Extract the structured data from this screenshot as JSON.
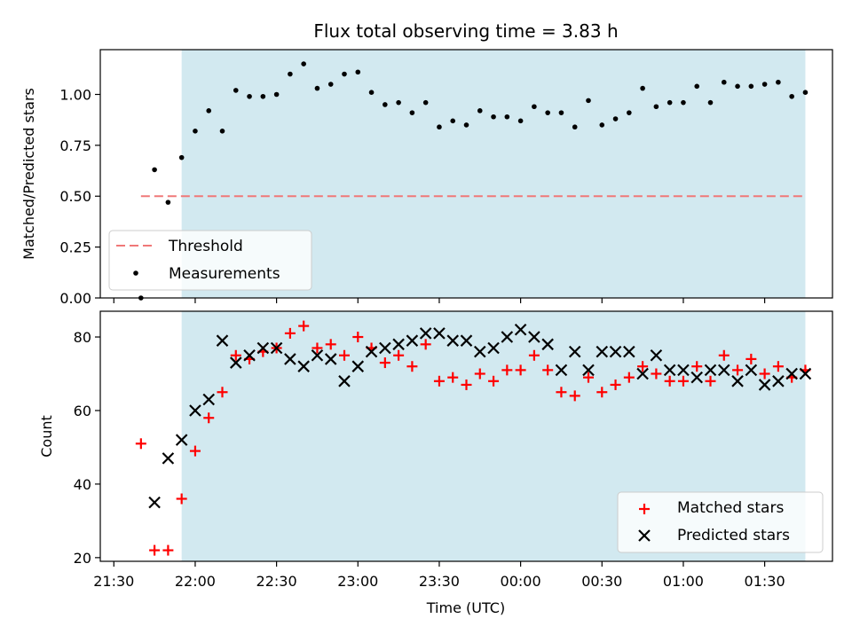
{
  "chart_data": [
    {
      "type": "scatter",
      "title": "Flux total observing time = 3.83 h",
      "ylabel": "Matched/Predicted stars",
      "xlabel": "",
      "ylim": [
        0,
        1.22
      ],
      "yticks": [
        "0.00",
        "0.25",
        "0.50",
        "0.75",
        "1.00"
      ],
      "highlight_span": {
        "start": "21:55",
        "end": "01:45",
        "color": "#d2e9f0"
      },
      "threshold": {
        "name": "Threshold",
        "value": 0.5,
        "from": "21:40",
        "to": "01:45",
        "color": "#f07878"
      },
      "legend_placement": "lower-left",
      "series": [
        {
          "name": "Measurements",
          "color": "#000000",
          "points": [
            [
              "21:40",
              0.0
            ],
            [
              "21:45",
              0.63
            ],
            [
              "21:50",
              0.47
            ],
            [
              "21:55",
              0.69
            ],
            [
              "22:00",
              0.82
            ],
            [
              "22:05",
              0.92
            ],
            [
              "22:10",
              0.82
            ],
            [
              "22:15",
              1.02
            ],
            [
              "22:20",
              0.99
            ],
            [
              "22:25",
              0.99
            ],
            [
              "22:30",
              1.0
            ],
            [
              "22:35",
              1.1
            ],
            [
              "22:40",
              1.15
            ],
            [
              "22:45",
              1.03
            ],
            [
              "22:50",
              1.05
            ],
            [
              "22:55",
              1.1
            ],
            [
              "23:00",
              1.11
            ],
            [
              "23:05",
              1.01
            ],
            [
              "23:10",
              0.95
            ],
            [
              "23:15",
              0.96
            ],
            [
              "23:20",
              0.91
            ],
            [
              "23:25",
              0.96
            ],
            [
              "23:30",
              0.84
            ],
            [
              "23:35",
              0.87
            ],
            [
              "23:40",
              0.85
            ],
            [
              "23:45",
              0.92
            ],
            [
              "23:50",
              0.89
            ],
            [
              "23:55",
              0.89
            ],
            [
              "00:00",
              0.87
            ],
            [
              "00:05",
              0.94
            ],
            [
              "00:10",
              0.91
            ],
            [
              "00:15",
              0.91
            ],
            [
              "00:20",
              0.84
            ],
            [
              "00:25",
              0.97
            ],
            [
              "00:30",
              0.85
            ],
            [
              "00:35",
              0.88
            ],
            [
              "00:40",
              0.91
            ],
            [
              "00:45",
              1.03
            ],
            [
              "00:50",
              0.94
            ],
            [
              "00:55",
              0.96
            ],
            [
              "01:00",
              0.96
            ],
            [
              "01:05",
              1.04
            ],
            [
              "01:10",
              0.96
            ],
            [
              "01:15",
              1.06
            ],
            [
              "01:20",
              1.04
            ],
            [
              "01:25",
              1.04
            ],
            [
              "01:30",
              1.05
            ],
            [
              "01:35",
              1.06
            ],
            [
              "01:40",
              0.99
            ],
            [
              "01:45",
              1.01
            ]
          ]
        }
      ]
    },
    {
      "type": "scatter",
      "title": "",
      "ylabel": "Count",
      "xlabel": "Time (UTC)",
      "ylim": [
        19,
        87
      ],
      "yticks": [
        "20",
        "40",
        "60",
        "80"
      ],
      "xlim": [
        "21:25",
        "01:55"
      ],
      "xticks": [
        "21:30",
        "22:00",
        "22:30",
        "23:00",
        "23:30",
        "00:00",
        "00:30",
        "01:00",
        "01:30"
      ],
      "highlight_span": {
        "start": "21:55",
        "end": "01:45",
        "color": "#d2e9f0"
      },
      "legend_placement": "lower-right",
      "series": [
        {
          "name": "Matched stars",
          "marker": "plus",
          "color": "#ff0000",
          "points": [
            [
              "21:40",
              51
            ],
            [
              "21:45",
              22
            ],
            [
              "21:50",
              22
            ],
            [
              "21:55",
              36
            ],
            [
              "22:00",
              49
            ],
            [
              "22:05",
              58
            ],
            [
              "22:10",
              65
            ],
            [
              "22:15",
              75
            ],
            [
              "22:20",
              74
            ],
            [
              "22:25",
              76
            ],
            [
              "22:30",
              77
            ],
            [
              "22:35",
              81
            ],
            [
              "22:40",
              83
            ],
            [
              "22:45",
              77
            ],
            [
              "22:50",
              78
            ],
            [
              "22:55",
              75
            ],
            [
              "23:00",
              80
            ],
            [
              "23:05",
              77
            ],
            [
              "23:10",
              73
            ],
            [
              "23:15",
              75
            ],
            [
              "23:20",
              72
            ],
            [
              "23:25",
              78
            ],
            [
              "23:30",
              68
            ],
            [
              "23:35",
              69
            ],
            [
              "23:40",
              67
            ],
            [
              "23:45",
              70
            ],
            [
              "23:50",
              68
            ],
            [
              "23:55",
              71
            ],
            [
              "00:00",
              71
            ],
            [
              "00:05",
              75
            ],
            [
              "00:10",
              71
            ],
            [
              "00:15",
              65
            ],
            [
              "00:20",
              64
            ],
            [
              "00:25",
              69
            ],
            [
              "00:30",
              65
            ],
            [
              "00:35",
              67
            ],
            [
              "00:40",
              69
            ],
            [
              "00:45",
              72
            ],
            [
              "00:50",
              70
            ],
            [
              "00:55",
              68
            ],
            [
              "01:00",
              68
            ],
            [
              "01:05",
              72
            ],
            [
              "01:10",
              68
            ],
            [
              "01:15",
              75
            ],
            [
              "01:20",
              71
            ],
            [
              "01:25",
              74
            ],
            [
              "01:30",
              70
            ],
            [
              "01:35",
              72
            ],
            [
              "01:40",
              69
            ],
            [
              "01:45",
              71
            ]
          ]
        },
        {
          "name": "Predicted stars",
          "marker": "x",
          "color": "#000000",
          "points": [
            [
              "21:45",
              35
            ],
            [
              "21:50",
              47
            ],
            [
              "21:55",
              52
            ],
            [
              "22:00",
              60
            ],
            [
              "22:05",
              63
            ],
            [
              "22:10",
              79
            ],
            [
              "22:15",
              73
            ],
            [
              "22:20",
              75
            ],
            [
              "22:25",
              77
            ],
            [
              "22:30",
              77
            ],
            [
              "22:35",
              74
            ],
            [
              "22:40",
              72
            ],
            [
              "22:45",
              75
            ],
            [
              "22:50",
              74
            ],
            [
              "22:55",
              68
            ],
            [
              "23:00",
              72
            ],
            [
              "23:05",
              76
            ],
            [
              "23:10",
              77
            ],
            [
              "23:15",
              78
            ],
            [
              "23:20",
              79
            ],
            [
              "23:25",
              81
            ],
            [
              "23:30",
              81
            ],
            [
              "23:35",
              79
            ],
            [
              "23:40",
              79
            ],
            [
              "23:45",
              76
            ],
            [
              "23:50",
              77
            ],
            [
              "23:55",
              80
            ],
            [
              "00:00",
              82
            ],
            [
              "00:05",
              80
            ],
            [
              "00:10",
              78
            ],
            [
              "00:15",
              71
            ],
            [
              "00:20",
              76
            ],
            [
              "00:25",
              71
            ],
            [
              "00:30",
              76
            ],
            [
              "00:35",
              76
            ],
            [
              "00:40",
              76
            ],
            [
              "00:45",
              70
            ],
            [
              "00:50",
              75
            ],
            [
              "00:55",
              71
            ],
            [
              "01:00",
              71
            ],
            [
              "01:05",
              69
            ],
            [
              "01:10",
              71
            ],
            [
              "01:15",
              71
            ],
            [
              "01:20",
              68
            ],
            [
              "01:25",
              71
            ],
            [
              "01:30",
              67
            ],
            [
              "01:35",
              68
            ],
            [
              "01:40",
              70
            ],
            [
              "01:45",
              70
            ]
          ]
        }
      ]
    }
  ]
}
